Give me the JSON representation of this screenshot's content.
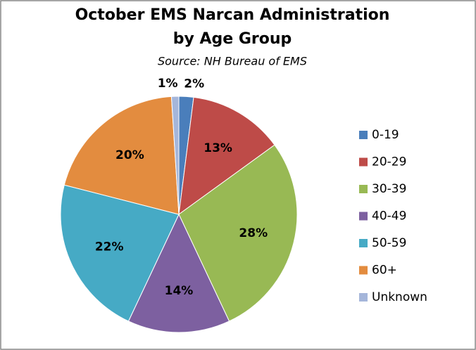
{
  "chart_data": {
    "type": "pie",
    "title": "October EMS Narcan Administration",
    "title_line2": "by Age Group",
    "subtitle": "Source: NH Bureau of EMS",
    "categories": [
      "0-19",
      "20-29",
      "30-39",
      "40-49",
      "50-59",
      "60+",
      "Unknown"
    ],
    "values": [
      2,
      13,
      28,
      14,
      22,
      20,
      1
    ],
    "value_labels": [
      "2%",
      "13%",
      "28%",
      "14%",
      "22%",
      "20%",
      "1%"
    ],
    "colors": [
      "#4a7ebb",
      "#be4b48",
      "#98b954",
      "#7d60a0",
      "#46aac5",
      "#e38c3f",
      "#a5b6da"
    ],
    "legend": "right"
  }
}
